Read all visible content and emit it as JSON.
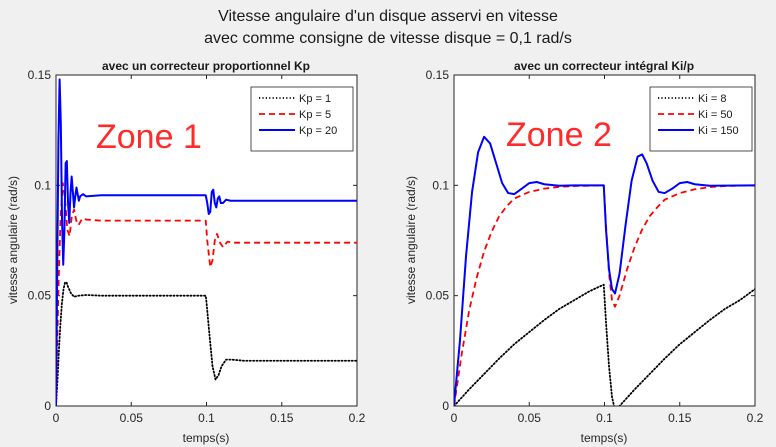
{
  "figure": {
    "title_line1": "Vitesse angulaire d'un disque asservi en vitesse",
    "title_line2": "avec comme consigne de vitesse disque = 0,1 rad/s"
  },
  "chart_data": [
    {
      "type": "line",
      "title": "avec un correcteur proportionnel Kp",
      "xlabel": "temps(s)",
      "ylabel": "vitesse angulaire (rad/s)",
      "xlim": [
        0,
        0.2
      ],
      "ylim": [
        0,
        0.15
      ],
      "xticks": [
        "0",
        "0.05",
        "0.1",
        "0.15",
        "0.2"
      ],
      "yticks": [
        "0",
        "0.05",
        "0.1",
        "0.15"
      ],
      "grid": false,
      "legend_position": "top-right",
      "annotation": "Zone 1",
      "annotation_color": "#ff2a2a",
      "series": [
        {
          "name": "Kp = 1",
          "color": "#000000",
          "style": "dotted",
          "points": [
            [
              0,
              0
            ],
            [
              0.001,
              0.012
            ],
            [
              0.002,
              0.026
            ],
            [
              0.003,
              0.038
            ],
            [
              0.004,
              0.047
            ],
            [
              0.005,
              0.053
            ],
            [
              0.006,
              0.056
            ],
            [
              0.007,
              0.056
            ],
            [
              0.008,
              0.054
            ],
            [
              0.01,
              0.051
            ],
            [
              0.012,
              0.0495
            ],
            [
              0.015,
              0.05
            ],
            [
              0.02,
              0.0503
            ],
            [
              0.03,
              0.05
            ],
            [
              0.0995,
              0.05
            ],
            [
              0.1,
              0.047
            ],
            [
              0.102,
              0.032
            ],
            [
              0.104,
              0.018
            ],
            [
              0.106,
              0.012
            ],
            [
              0.108,
              0.014
            ],
            [
              0.11,
              0.018
            ],
            [
              0.113,
              0.021
            ],
            [
              0.117,
              0.021
            ],
            [
              0.125,
              0.0205
            ],
            [
              0.14,
              0.0205
            ],
            [
              0.2,
              0.0205
            ]
          ]
        },
        {
          "name": "Kp = 5",
          "color": "#ff0000",
          "style": "dashed",
          "points": [
            [
              0,
              0
            ],
            [
              0.0015,
              0.05
            ],
            [
              0.003,
              0.085
            ],
            [
              0.0045,
              0.101
            ],
            [
              0.006,
              0.094
            ],
            [
              0.0075,
              0.08
            ],
            [
              0.009,
              0.077
            ],
            [
              0.0105,
              0.086
            ],
            [
              0.012,
              0.089
            ],
            [
              0.0135,
              0.084
            ],
            [
              0.015,
              0.082
            ],
            [
              0.0175,
              0.085
            ],
            [
              0.02,
              0.0845
            ],
            [
              0.03,
              0.084
            ],
            [
              0.0995,
              0.084
            ],
            [
              0.1005,
              0.075
            ],
            [
              0.1025,
              0.063
            ],
            [
              0.104,
              0.066
            ],
            [
              0.1055,
              0.075
            ],
            [
              0.107,
              0.078
            ],
            [
              0.109,
              0.074
            ],
            [
              0.111,
              0.072
            ],
            [
              0.114,
              0.0745
            ],
            [
              0.118,
              0.074
            ],
            [
              0.13,
              0.074
            ],
            [
              0.2,
              0.074
            ]
          ]
        },
        {
          "name": "Kp = 20",
          "color": "#0000ff",
          "style": "solid",
          "points": [
            [
              0,
              0
            ],
            [
              0.0008,
              0.06
            ],
            [
              0.0016,
              0.12
            ],
            [
              0.0024,
              0.148
            ],
            [
              0.0032,
              0.128
            ],
            [
              0.004,
              0.085
            ],
            [
              0.0048,
              0.064
            ],
            [
              0.0056,
              0.08
            ],
            [
              0.0064,
              0.11
            ],
            [
              0.0072,
              0.111
            ],
            [
              0.008,
              0.092
            ],
            [
              0.0088,
              0.083
            ],
            [
              0.0096,
              0.096
            ],
            [
              0.0104,
              0.104
            ],
            [
              0.0112,
              0.097
            ],
            [
              0.012,
              0.09
            ],
            [
              0.0128,
              0.095
            ],
            [
              0.0136,
              0.099
            ],
            [
              0.0144,
              0.096
            ],
            [
              0.0152,
              0.093
            ],
            [
              0.016,
              0.095
            ],
            [
              0.018,
              0.096
            ],
            [
              0.02,
              0.095
            ],
            [
              0.03,
              0.0955
            ],
            [
              0.0995,
              0.0955
            ],
            [
              0.1005,
              0.092
            ],
            [
              0.1015,
              0.087
            ],
            [
              0.1025,
              0.088
            ],
            [
              0.1035,
              0.097
            ],
            [
              0.1045,
              0.098
            ],
            [
              0.1055,
              0.092
            ],
            [
              0.1065,
              0.09
            ],
            [
              0.1075,
              0.094
            ],
            [
              0.1085,
              0.095
            ],
            [
              0.1095,
              0.092
            ],
            [
              0.111,
              0.092
            ],
            [
              0.113,
              0.0935
            ],
            [
              0.116,
              0.093
            ],
            [
              0.125,
              0.093
            ],
            [
              0.2,
              0.093
            ]
          ]
        }
      ]
    },
    {
      "type": "line",
      "title": "avec un correcteur intégral Ki/p",
      "xlabel": "temps(s)",
      "ylabel": "vitesse angulaire (rad/s)",
      "xlim": [
        0,
        0.2
      ],
      "ylim": [
        0,
        0.15
      ],
      "xticks": [
        "0",
        "0.05",
        "0.1",
        "0.15",
        "0.2"
      ],
      "yticks": [
        "0",
        "0.05",
        "0.1",
        "0.15"
      ],
      "grid": false,
      "legend_position": "top-right",
      "annotation": "Zone 2",
      "annotation_color": "#ff2a2a",
      "series": [
        {
          "name": "Ki = 8",
          "color": "#000000",
          "style": "dotted",
          "points": [
            [
              0,
              0
            ],
            [
              0.01,
              0.0075
            ],
            [
              0.02,
              0.0145
            ],
            [
              0.03,
              0.0215
            ],
            [
              0.04,
              0.028
            ],
            [
              0.05,
              0.0335
            ],
            [
              0.06,
              0.039
            ],
            [
              0.07,
              0.044
            ],
            [
              0.08,
              0.048
            ],
            [
              0.09,
              0.052
            ],
            [
              0.0995,
              0.055
            ],
            [
              0.101,
              0.038
            ],
            [
              0.103,
              0.018
            ],
            [
              0.105,
              0.004
            ],
            [
              0.107,
              -0.002
            ],
            [
              0.11,
              0.0
            ],
            [
              0.12,
              0.0075
            ],
            [
              0.13,
              0.0145
            ],
            [
              0.14,
              0.0215
            ],
            [
              0.15,
              0.028
            ],
            [
              0.16,
              0.0335
            ],
            [
              0.17,
              0.039
            ],
            [
              0.18,
              0.044
            ],
            [
              0.19,
              0.048
            ],
            [
              0.2,
              0.053
            ]
          ]
        },
        {
          "name": "Ki = 50",
          "color": "#ff0000",
          "style": "dashed",
          "points": [
            [
              0,
              0
            ],
            [
              0.005,
              0.023
            ],
            [
              0.01,
              0.043
            ],
            [
              0.015,
              0.058
            ],
            [
              0.02,
              0.07
            ],
            [
              0.025,
              0.079
            ],
            [
              0.03,
              0.086
            ],
            [
              0.035,
              0.0905
            ],
            [
              0.04,
              0.094
            ],
            [
              0.05,
              0.097
            ],
            [
              0.06,
              0.0985
            ],
            [
              0.07,
              0.0993
            ],
            [
              0.08,
              0.0997
            ],
            [
              0.0995,
              0.1
            ],
            [
              0.101,
              0.082
            ],
            [
              0.103,
              0.06
            ],
            [
              0.105,
              0.048
            ],
            [
              0.107,
              0.045
            ],
            [
              0.11,
              0.05
            ],
            [
              0.115,
              0.062
            ],
            [
              0.12,
              0.072
            ],
            [
              0.125,
              0.08
            ],
            [
              0.13,
              0.086
            ],
            [
              0.135,
              0.09
            ],
            [
              0.14,
              0.0935
            ],
            [
              0.15,
              0.0965
            ],
            [
              0.16,
              0.0982
            ],
            [
              0.17,
              0.0992
            ],
            [
              0.18,
              0.0997
            ],
            [
              0.2,
              0.1
            ]
          ]
        },
        {
          "name": "Ki = 150",
          "color": "#0000ff",
          "style": "solid",
          "points": [
            [
              0,
              0
            ],
            [
              0.004,
              0.03
            ],
            [
              0.008,
              0.068
            ],
            [
              0.012,
              0.097
            ],
            [
              0.016,
              0.115
            ],
            [
              0.02,
              0.122
            ],
            [
              0.024,
              0.119
            ],
            [
              0.028,
              0.11
            ],
            [
              0.032,
              0.101
            ],
            [
              0.036,
              0.0965
            ],
            [
              0.04,
              0.096
            ],
            [
              0.045,
              0.0985
            ],
            [
              0.05,
              0.101
            ],
            [
              0.055,
              0.1015
            ],
            [
              0.06,
              0.1005
            ],
            [
              0.07,
              0.0998
            ],
            [
              0.08,
              0.1
            ],
            [
              0.0995,
              0.1
            ],
            [
              0.101,
              0.08
            ],
            [
              0.103,
              0.062
            ],
            [
              0.105,
              0.053
            ],
            [
              0.107,
              0.051
            ],
            [
              0.11,
              0.06
            ],
            [
              0.114,
              0.082
            ],
            [
              0.118,
              0.102
            ],
            [
              0.122,
              0.113
            ],
            [
              0.125,
              0.114
            ],
            [
              0.128,
              0.11
            ],
            [
              0.132,
              0.102
            ],
            [
              0.136,
              0.097
            ],
            [
              0.14,
              0.0965
            ],
            [
              0.145,
              0.0985
            ],
            [
              0.15,
              0.101
            ],
            [
              0.155,
              0.1015
            ],
            [
              0.16,
              0.1005
            ],
            [
              0.17,
              0.0998
            ],
            [
              0.2,
              0.1
            ]
          ]
        }
      ]
    }
  ]
}
